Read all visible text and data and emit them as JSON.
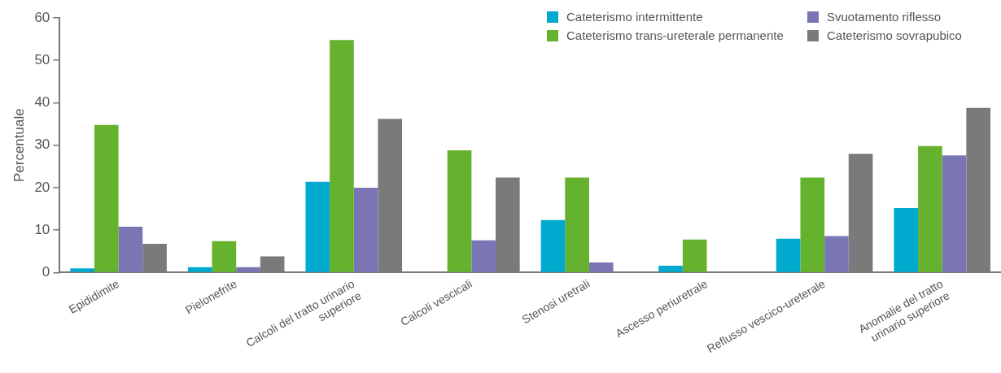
{
  "chart_data": {
    "type": "bar",
    "ylabel": "Percentuale",
    "categories": [
      "Epididimite",
      "Pielonefrite",
      "Calcoli del tratto urinario superiore",
      "Calcoli vescicali",
      "Stenosi uretrali",
      "Ascesso periuretrale",
      "Reflusso vescico-ureterale",
      "Anomalie del tratto urinario superiore"
    ],
    "series": [
      {
        "name": "Cateterismo intermittente",
        "color": "#00a9ce",
        "values": [
          1,
          1.3,
          21.4,
          0,
          12.4,
          1.6,
          8,
          15.2
        ]
      },
      {
        "name": "Cateterismo trans-ureterale permanente",
        "color": "#64b22d",
        "values": [
          34.8,
          7.4,
          54.8,
          28.8,
          22.4,
          7.8,
          22.4,
          29.8
        ]
      },
      {
        "name": "Svuotamento riflesso",
        "color": "#7a75b5",
        "values": [
          10.8,
          1.3,
          20,
          7.6,
          2.4,
          0,
          8.6,
          27.6
        ]
      },
      {
        "name": "Cateterismo sovrapubico",
        "color": "#7a7a7a",
        "values": [
          6.8,
          3.8,
          36.2,
          22.4,
          0,
          0,
          28,
          38.8
        ]
      }
    ],
    "ylim": [
      0,
      60
    ],
    "yticks": [
      0,
      10,
      20,
      30,
      40,
      50,
      60
    ],
    "grid": false,
    "legend": "top right"
  }
}
